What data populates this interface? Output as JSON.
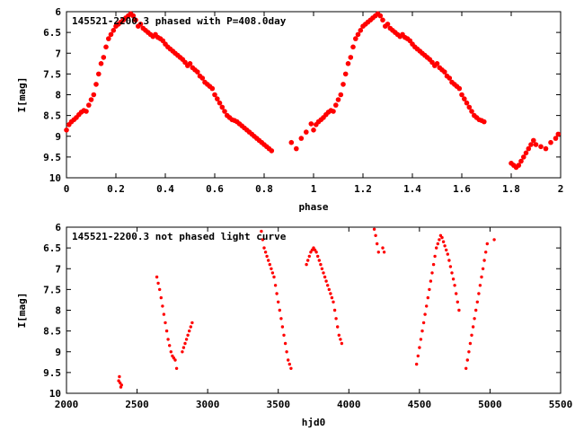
{
  "chart_data": [
    {
      "type": "scatter",
      "title": "145521-2200.3 phased with P=408.0day",
      "xlabel": "phase",
      "ylabel": "I[mag]",
      "xlim": [
        0,
        2
      ],
      "ylim": [
        6,
        10
      ],
      "y_inverted": true,
      "grid": false,
      "marker_color": "#ff0000",
      "marker": "filled-circle",
      "x_ticks": [
        "0",
        "0.2",
        "0.4",
        "0.6",
        "0.8",
        "1",
        "1.2",
        "1.4",
        "1.6",
        "1.8",
        "2"
      ],
      "y_ticks": [
        "6",
        "6.5",
        "7",
        "7.5",
        "8",
        "8.5",
        "9",
        "9.5",
        "10"
      ],
      "points": [
        [
          0.0,
          8.85
        ],
        [
          0.01,
          8.72
        ],
        [
          0.02,
          8.65
        ],
        [
          0.03,
          8.6
        ],
        [
          0.04,
          8.55
        ],
        [
          0.05,
          8.48
        ],
        [
          0.06,
          8.42
        ],
        [
          0.07,
          8.38
        ],
        [
          0.08,
          8.4
        ],
        [
          0.09,
          8.25
        ],
        [
          0.1,
          8.12
        ],
        [
          0.11,
          8.0
        ],
        [
          0.12,
          7.75
        ],
        [
          0.13,
          7.5
        ],
        [
          0.14,
          7.25
        ],
        [
          0.15,
          7.1
        ],
        [
          0.16,
          6.85
        ],
        [
          0.17,
          6.65
        ],
        [
          0.18,
          6.55
        ],
        [
          0.19,
          6.45
        ],
        [
          0.2,
          6.35
        ],
        [
          0.21,
          6.3
        ],
        [
          0.22,
          6.25
        ],
        [
          0.23,
          6.2
        ],
        [
          0.24,
          6.15
        ],
        [
          0.25,
          6.1
        ],
        [
          0.26,
          6.05
        ],
        [
          0.27,
          6.1
        ],
        [
          0.28,
          6.2
        ],
        [
          0.29,
          6.35
        ],
        [
          0.3,
          6.3
        ],
        [
          0.31,
          6.4
        ],
        [
          0.32,
          6.45
        ],
        [
          0.33,
          6.5
        ],
        [
          0.34,
          6.55
        ],
        [
          0.35,
          6.6
        ],
        [
          0.36,
          6.55
        ],
        [
          0.37,
          6.62
        ],
        [
          0.38,
          6.65
        ],
        [
          0.39,
          6.7
        ],
        [
          0.4,
          6.78
        ],
        [
          0.41,
          6.85
        ],
        [
          0.42,
          6.9
        ],
        [
          0.43,
          6.95
        ],
        [
          0.44,
          7.0
        ],
        [
          0.45,
          7.05
        ],
        [
          0.46,
          7.1
        ],
        [
          0.47,
          7.15
        ],
        [
          0.48,
          7.22
        ],
        [
          0.49,
          7.3
        ],
        [
          0.5,
          7.25
        ],
        [
          0.51,
          7.35
        ],
        [
          0.52,
          7.4
        ],
        [
          0.53,
          7.45
        ],
        [
          0.54,
          7.55
        ],
        [
          0.55,
          7.6
        ],
        [
          0.56,
          7.7
        ],
        [
          0.57,
          7.75
        ],
        [
          0.58,
          7.8
        ],
        [
          0.59,
          7.85
        ],
        [
          0.6,
          8.0
        ],
        [
          0.61,
          8.1
        ],
        [
          0.62,
          8.2
        ],
        [
          0.63,
          8.3
        ],
        [
          0.64,
          8.4
        ],
        [
          0.65,
          8.5
        ],
        [
          0.66,
          8.55
        ],
        [
          0.67,
          8.6
        ],
        [
          0.68,
          8.62
        ],
        [
          0.69,
          8.65
        ],
        [
          0.7,
          8.7
        ],
        [
          0.71,
          8.75
        ],
        [
          0.72,
          8.8
        ],
        [
          0.73,
          8.85
        ],
        [
          0.74,
          8.9
        ],
        [
          0.75,
          8.95
        ],
        [
          0.76,
          9.0
        ],
        [
          0.77,
          9.05
        ],
        [
          0.78,
          9.1
        ],
        [
          0.79,
          9.15
        ],
        [
          0.8,
          9.2
        ],
        [
          0.81,
          9.25
        ],
        [
          0.82,
          9.3
        ],
        [
          0.83,
          9.35
        ],
        [
          0.91,
          9.15
        ],
        [
          0.93,
          9.3
        ],
        [
          0.95,
          9.05
        ],
        [
          0.97,
          8.9
        ],
        [
          0.99,
          8.7
        ],
        [
          1.0,
          8.85
        ],
        [
          1.01,
          8.72
        ],
        [
          1.02,
          8.65
        ],
        [
          1.03,
          8.6
        ],
        [
          1.04,
          8.55
        ],
        [
          1.05,
          8.48
        ],
        [
          1.06,
          8.42
        ],
        [
          1.07,
          8.38
        ],
        [
          1.08,
          8.4
        ],
        [
          1.09,
          8.25
        ],
        [
          1.1,
          8.12
        ],
        [
          1.11,
          8.0
        ],
        [
          1.12,
          7.75
        ],
        [
          1.13,
          7.5
        ],
        [
          1.14,
          7.25
        ],
        [
          1.15,
          7.1
        ],
        [
          1.16,
          6.85
        ],
        [
          1.17,
          6.65
        ],
        [
          1.18,
          6.55
        ],
        [
          1.19,
          6.45
        ],
        [
          1.2,
          6.35
        ],
        [
          1.21,
          6.3
        ],
        [
          1.22,
          6.25
        ],
        [
          1.23,
          6.2
        ],
        [
          1.24,
          6.15
        ],
        [
          1.25,
          6.1
        ],
        [
          1.26,
          6.05
        ],
        [
          1.27,
          6.1
        ],
        [
          1.28,
          6.2
        ],
        [
          1.29,
          6.35
        ],
        [
          1.3,
          6.3
        ],
        [
          1.31,
          6.4
        ],
        [
          1.32,
          6.45
        ],
        [
          1.33,
          6.5
        ],
        [
          1.34,
          6.55
        ],
        [
          1.35,
          6.6
        ],
        [
          1.36,
          6.55
        ],
        [
          1.37,
          6.62
        ],
        [
          1.38,
          6.65
        ],
        [
          1.39,
          6.7
        ],
        [
          1.4,
          6.78
        ],
        [
          1.41,
          6.85
        ],
        [
          1.42,
          6.9
        ],
        [
          1.43,
          6.95
        ],
        [
          1.44,
          7.0
        ],
        [
          1.45,
          7.05
        ],
        [
          1.46,
          7.1
        ],
        [
          1.47,
          7.15
        ],
        [
          1.48,
          7.22
        ],
        [
          1.49,
          7.3
        ],
        [
          1.5,
          7.25
        ],
        [
          1.51,
          7.35
        ],
        [
          1.52,
          7.4
        ],
        [
          1.53,
          7.45
        ],
        [
          1.54,
          7.55
        ],
        [
          1.55,
          7.6
        ],
        [
          1.56,
          7.7
        ],
        [
          1.57,
          7.75
        ],
        [
          1.58,
          7.8
        ],
        [
          1.59,
          7.85
        ],
        [
          1.6,
          8.0
        ],
        [
          1.61,
          8.1
        ],
        [
          1.62,
          8.2
        ],
        [
          1.63,
          8.3
        ],
        [
          1.64,
          8.4
        ],
        [
          1.65,
          8.5
        ],
        [
          1.66,
          8.55
        ],
        [
          1.67,
          8.6
        ],
        [
          1.68,
          8.62
        ],
        [
          1.69,
          8.65
        ],
        [
          1.8,
          9.65
        ],
        [
          1.81,
          9.7
        ],
        [
          1.82,
          9.75
        ],
        [
          1.83,
          9.7
        ],
        [
          1.84,
          9.6
        ],
        [
          1.85,
          9.5
        ],
        [
          1.86,
          9.4
        ],
        [
          1.87,
          9.3
        ],
        [
          1.88,
          9.2
        ],
        [
          1.89,
          9.1
        ],
        [
          1.9,
          9.2
        ],
        [
          1.92,
          9.25
        ],
        [
          1.94,
          9.3
        ],
        [
          1.96,
          9.15
        ],
        [
          1.98,
          9.05
        ],
        [
          1.99,
          8.95
        ]
      ]
    },
    {
      "type": "scatter",
      "title": "145521-2200.3 not phased light curve",
      "xlabel": "hjd0",
      "ylabel": "I[mag]",
      "xlim": [
        2000,
        5500
      ],
      "ylim": [
        6,
        10
      ],
      "y_inverted": true,
      "grid": false,
      "marker_color": "#ff0000",
      "marker": "filled-circle",
      "x_ticks": [
        "2000",
        "2500",
        "3000",
        "3500",
        "4000",
        "4500",
        "5000",
        "5500"
      ],
      "y_ticks": [
        "6",
        "6.5",
        "7",
        "7.5",
        "8",
        "8.5",
        "9",
        "9.5",
        "10"
      ],
      "points": [
        [
          2370,
          9.7
        ],
        [
          2375,
          9.6
        ],
        [
          2380,
          9.75
        ],
        [
          2385,
          9.85
        ],
        [
          2390,
          9.8
        ],
        [
          2640,
          7.2
        ],
        [
          2650,
          7.35
        ],
        [
          2660,
          7.5
        ],
        [
          2670,
          7.7
        ],
        [
          2680,
          7.9
        ],
        [
          2690,
          8.1
        ],
        [
          2700,
          8.3
        ],
        [
          2710,
          8.5
        ],
        [
          2720,
          8.7
        ],
        [
          2730,
          8.85
        ],
        [
          2740,
          9.0
        ],
        [
          2750,
          9.1
        ],
        [
          2760,
          9.15
        ],
        [
          2770,
          9.2
        ],
        [
          2780,
          9.4
        ],
        [
          2820,
          9.0
        ],
        [
          2830,
          8.9
        ],
        [
          2840,
          8.8
        ],
        [
          2850,
          8.7
        ],
        [
          2860,
          8.6
        ],
        [
          2870,
          8.5
        ],
        [
          2880,
          8.4
        ],
        [
          2890,
          8.3
        ],
        [
          3380,
          6.1
        ],
        [
          3390,
          6.3
        ],
        [
          3400,
          6.5
        ],
        [
          3410,
          6.6
        ],
        [
          3420,
          6.7
        ],
        [
          3430,
          6.8
        ],
        [
          3440,
          6.9
        ],
        [
          3450,
          7.0
        ],
        [
          3460,
          7.1
        ],
        [
          3470,
          7.2
        ],
        [
          3480,
          7.4
        ],
        [
          3490,
          7.6
        ],
        [
          3500,
          7.8
        ],
        [
          3510,
          8.0
        ],
        [
          3520,
          8.2
        ],
        [
          3530,
          8.4
        ],
        [
          3540,
          8.6
        ],
        [
          3550,
          8.8
        ],
        [
          3560,
          9.0
        ],
        [
          3570,
          9.2
        ],
        [
          3580,
          9.3
        ],
        [
          3590,
          9.4
        ],
        [
          3700,
          6.9
        ],
        [
          3710,
          6.8
        ],
        [
          3720,
          6.7
        ],
        [
          3730,
          6.6
        ],
        [
          3740,
          6.55
        ],
        [
          3750,
          6.5
        ],
        [
          3760,
          6.55
        ],
        [
          3770,
          6.6
        ],
        [
          3780,
          6.7
        ],
        [
          3790,
          6.8
        ],
        [
          3800,
          6.9
        ],
        [
          3810,
          7.0
        ],
        [
          3820,
          7.1
        ],
        [
          3830,
          7.2
        ],
        [
          3840,
          7.3
        ],
        [
          3850,
          7.4
        ],
        [
          3860,
          7.5
        ],
        [
          3870,
          7.6
        ],
        [
          3880,
          7.7
        ],
        [
          3890,
          7.8
        ],
        [
          3900,
          8.0
        ],
        [
          3910,
          8.2
        ],
        [
          3920,
          8.4
        ],
        [
          3930,
          8.6
        ],
        [
          3940,
          8.7
        ],
        [
          3950,
          8.8
        ],
        [
          4180,
          6.05
        ],
        [
          4190,
          6.2
        ],
        [
          4200,
          6.4
        ],
        [
          4210,
          6.6
        ],
        [
          4240,
          6.5
        ],
        [
          4250,
          6.6
        ],
        [
          4480,
          9.3
        ],
        [
          4490,
          9.1
        ],
        [
          4500,
          8.9
        ],
        [
          4510,
          8.7
        ],
        [
          4520,
          8.5
        ],
        [
          4530,
          8.3
        ],
        [
          4540,
          8.1
        ],
        [
          4550,
          7.9
        ],
        [
          4560,
          7.7
        ],
        [
          4570,
          7.5
        ],
        [
          4580,
          7.3
        ],
        [
          4590,
          7.1
        ],
        [
          4600,
          6.9
        ],
        [
          4610,
          6.7
        ],
        [
          4620,
          6.5
        ],
        [
          4630,
          6.4
        ],
        [
          4640,
          6.3
        ],
        [
          4650,
          6.2
        ],
        [
          4660,
          6.25
        ],
        [
          4670,
          6.35
        ],
        [
          4680,
          6.45
        ],
        [
          4690,
          6.55
        ],
        [
          4700,
          6.65
        ],
        [
          4710,
          6.8
        ],
        [
          4720,
          6.95
        ],
        [
          4730,
          7.1
        ],
        [
          4740,
          7.25
        ],
        [
          4750,
          7.4
        ],
        [
          4760,
          7.6
        ],
        [
          4770,
          7.8
        ],
        [
          4780,
          8.0
        ],
        [
          4830,
          9.4
        ],
        [
          4840,
          9.2
        ],
        [
          4850,
          9.0
        ],
        [
          4860,
          8.8
        ],
        [
          4870,
          8.6
        ],
        [
          4880,
          8.4
        ],
        [
          4890,
          8.2
        ],
        [
          4900,
          8.0
        ],
        [
          4910,
          7.8
        ],
        [
          4920,
          7.6
        ],
        [
          4930,
          7.4
        ],
        [
          4940,
          7.2
        ],
        [
          4950,
          7.0
        ],
        [
          4960,
          6.8
        ],
        [
          4970,
          6.6
        ],
        [
          4980,
          6.4
        ],
        [
          5030,
          6.3
        ]
      ]
    }
  ]
}
